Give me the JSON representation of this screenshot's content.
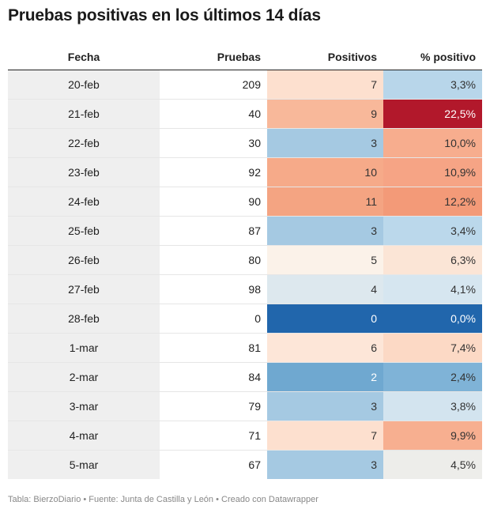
{
  "title": "Pruebas positivas en los últimos 14 días",
  "footer": "Tabla: BierzoDiario • Fuente: Junta de Castilla y León • Creado con Datawrapper",
  "chart_data": {
    "type": "table",
    "title": "Pruebas positivas en los últimos 14 días",
    "columns": [
      "Fecha",
      "Pruebas",
      "Positivos",
      "% positivo"
    ],
    "rows": [
      {
        "fecha": "20-feb",
        "pruebas": "209",
        "positivos": "7",
        "pct": "3,3%",
        "pos_bg": "#fde0cf",
        "pos_fg": "#333333",
        "pct_bg": "#b8d6ea",
        "pct_fg": "#333333"
      },
      {
        "fecha": "21-feb",
        "pruebas": "40",
        "positivos": "9",
        "pct": "22,5%",
        "pos_bg": "#f8b89a",
        "pos_fg": "#333333",
        "pct_bg": "#b2182b",
        "pct_fg": "#ffffff"
      },
      {
        "fecha": "22-feb",
        "pruebas": "30",
        "positivos": "3",
        "pct": "10,0%",
        "pos_bg": "#a5c9e2",
        "pos_fg": "#333333",
        "pct_bg": "#f7ad8e",
        "pct_fg": "#333333"
      },
      {
        "fecha": "23-feb",
        "pruebas": "92",
        "positivos": "10",
        "pct": "10,9%",
        "pos_bg": "#f6aa89",
        "pos_fg": "#333333",
        "pct_bg": "#f6a485",
        "pct_fg": "#333333"
      },
      {
        "fecha": "24-feb",
        "pruebas": "90",
        "positivos": "11",
        "pct": "12,2%",
        "pos_bg": "#f4a482",
        "pos_fg": "#333333",
        "pct_bg": "#f39a78",
        "pct_fg": "#333333"
      },
      {
        "fecha": "25-feb",
        "pruebas": "87",
        "positivos": "3",
        "pct": "3,4%",
        "pos_bg": "#a5c9e2",
        "pos_fg": "#333333",
        "pct_bg": "#bbd8eb",
        "pct_fg": "#333333"
      },
      {
        "fecha": "26-feb",
        "pruebas": "80",
        "positivos": "5",
        "pct": "6,3%",
        "pos_bg": "#fbf2e9",
        "pos_fg": "#333333",
        "pct_bg": "#fbe5d6",
        "pct_fg": "#333333"
      },
      {
        "fecha": "27-feb",
        "pruebas": "98",
        "positivos": "4",
        "pct": "4,1%",
        "pos_bg": "#dde8ee",
        "pos_fg": "#333333",
        "pct_bg": "#d6e6f0",
        "pct_fg": "#333333"
      },
      {
        "fecha": "28-feb",
        "pruebas": "0",
        "positivos": "0",
        "pct": "0,0%",
        "pos_bg": "#2166ac",
        "pos_fg": "#ffffff",
        "pct_bg": "#2166ac",
        "pct_fg": "#ffffff"
      },
      {
        "fecha": "1-mar",
        "pruebas": "81",
        "positivos": "6",
        "pct": "7,4%",
        "pos_bg": "#fde6d8",
        "pos_fg": "#333333",
        "pct_bg": "#fcd9c5",
        "pct_fg": "#333333"
      },
      {
        "fecha": "2-mar",
        "pruebas": "84",
        "positivos": "2",
        "pct": "2,4%",
        "pos_bg": "#6fa8d0",
        "pos_fg": "#ffffff",
        "pct_bg": "#7fb3d7",
        "pct_fg": "#333333"
      },
      {
        "fecha": "3-mar",
        "pruebas": "79",
        "positivos": "3",
        "pct": "3,8%",
        "pos_bg": "#a5c9e2",
        "pos_fg": "#333333",
        "pct_bg": "#d3e4ef",
        "pct_fg": "#333333"
      },
      {
        "fecha": "4-mar",
        "pruebas": "71",
        "positivos": "7",
        "pct": "9,9%",
        "pos_bg": "#fde0cf",
        "pos_fg": "#333333",
        "pct_bg": "#f7af90",
        "pct_fg": "#333333"
      },
      {
        "fecha": "5-mar",
        "pruebas": "67",
        "positivos": "3",
        "pct": "4,5%",
        "pos_bg": "#a5c9e2",
        "pos_fg": "#333333",
        "pct_bg": "#ededea",
        "pct_fg": "#333333"
      }
    ]
  }
}
